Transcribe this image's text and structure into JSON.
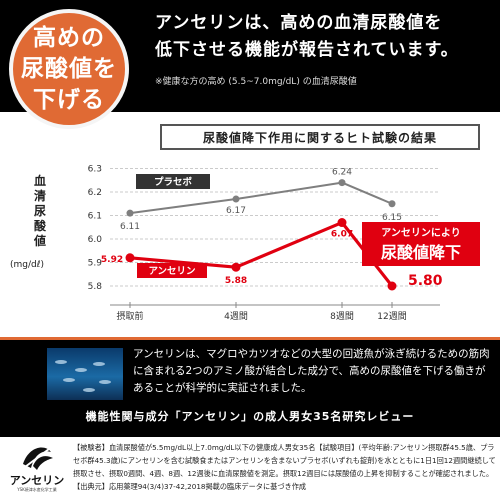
{
  "badge": {
    "lines": [
      "高めの",
      "尿酸値を",
      "下げる"
    ]
  },
  "headline": {
    "line1": "アンセリンは、高めの血清尿酸値を",
    "line2": "低下させる機能が報告されています。"
  },
  "note": "※健康な方の高め (5.5~7.0mg/dL) の血清尿酸値",
  "chart": {
    "title": "尿酸値降下作用に関するヒト試験の結果",
    "ylabel_chars": [
      "血",
      "清",
      "尿",
      "酸",
      "値"
    ],
    "yunit": "(mg/dℓ)",
    "callout_line1": "アンセリンにより",
    "callout_line2": "尿酸値降下",
    "colors": {
      "placebo": "#7f7f7f",
      "anserine": "#e00010",
      "badge": "#e06a34",
      "grid": "#bbbbbb"
    }
  },
  "chart_data": {
    "type": "line",
    "categories": [
      "摂取前",
      "4週間",
      "8週間",
      "12週間"
    ],
    "ylabel": "血清尿酸値 (mg/dℓ)",
    "ylim": [
      5.75,
      6.3
    ],
    "yticks": [
      "6.3",
      "6.2",
      "6.1",
      "6.0",
      "5.9",
      "5.8"
    ],
    "series": [
      {
        "name": "プラセボ",
        "values": [
          6.11,
          6.17,
          6.24,
          6.15
        ],
        "labels": [
          "6.11",
          "6.17",
          "6.24",
          "6.15"
        ]
      },
      {
        "name": "アンセリン",
        "values": [
          5.92,
          5.88,
          6.07,
          5.8
        ],
        "labels": [
          "5.92",
          "5.88",
          "6.07",
          "5.80"
        ]
      }
    ]
  },
  "fish_section": {
    "text": "アンセリンは、マグロやカツオなどの大型の回遊魚が泳ぎ続けるための筋肉に含まれる2つのアミノ酸が結合した成分で、高めの尿酸値を下げる働きがあることが科学的に実証されました。",
    "review": "機能性関与成分「アンセリン」の成人男女35名研究レビュー"
  },
  "footer": {
    "logo_name": "アンセリン",
    "logo_sub": "YSK焼津水産化学工業",
    "text": "【被験者】血清尿酸値が5.5mg/dL以上7.0mg/dL以下の健康成人男女35名【試験項目】(平均年齢:アンセリン摂取群45.5歳、プラセボ群45.3歳)にアンセリンを含む試験食またはアンセリンを含まないプラセボ(いずれも錠剤)を水とともに1日1回12週間継続して摂取させ、摂取0週間、4週、8週、12週後に血清尿酸値を測定。摂取12週目には尿酸値の上昇を抑制することが確認されました。【出典元】応用薬理94(3/4)37-42,2018掲載の臨床データに基づき作成"
  }
}
